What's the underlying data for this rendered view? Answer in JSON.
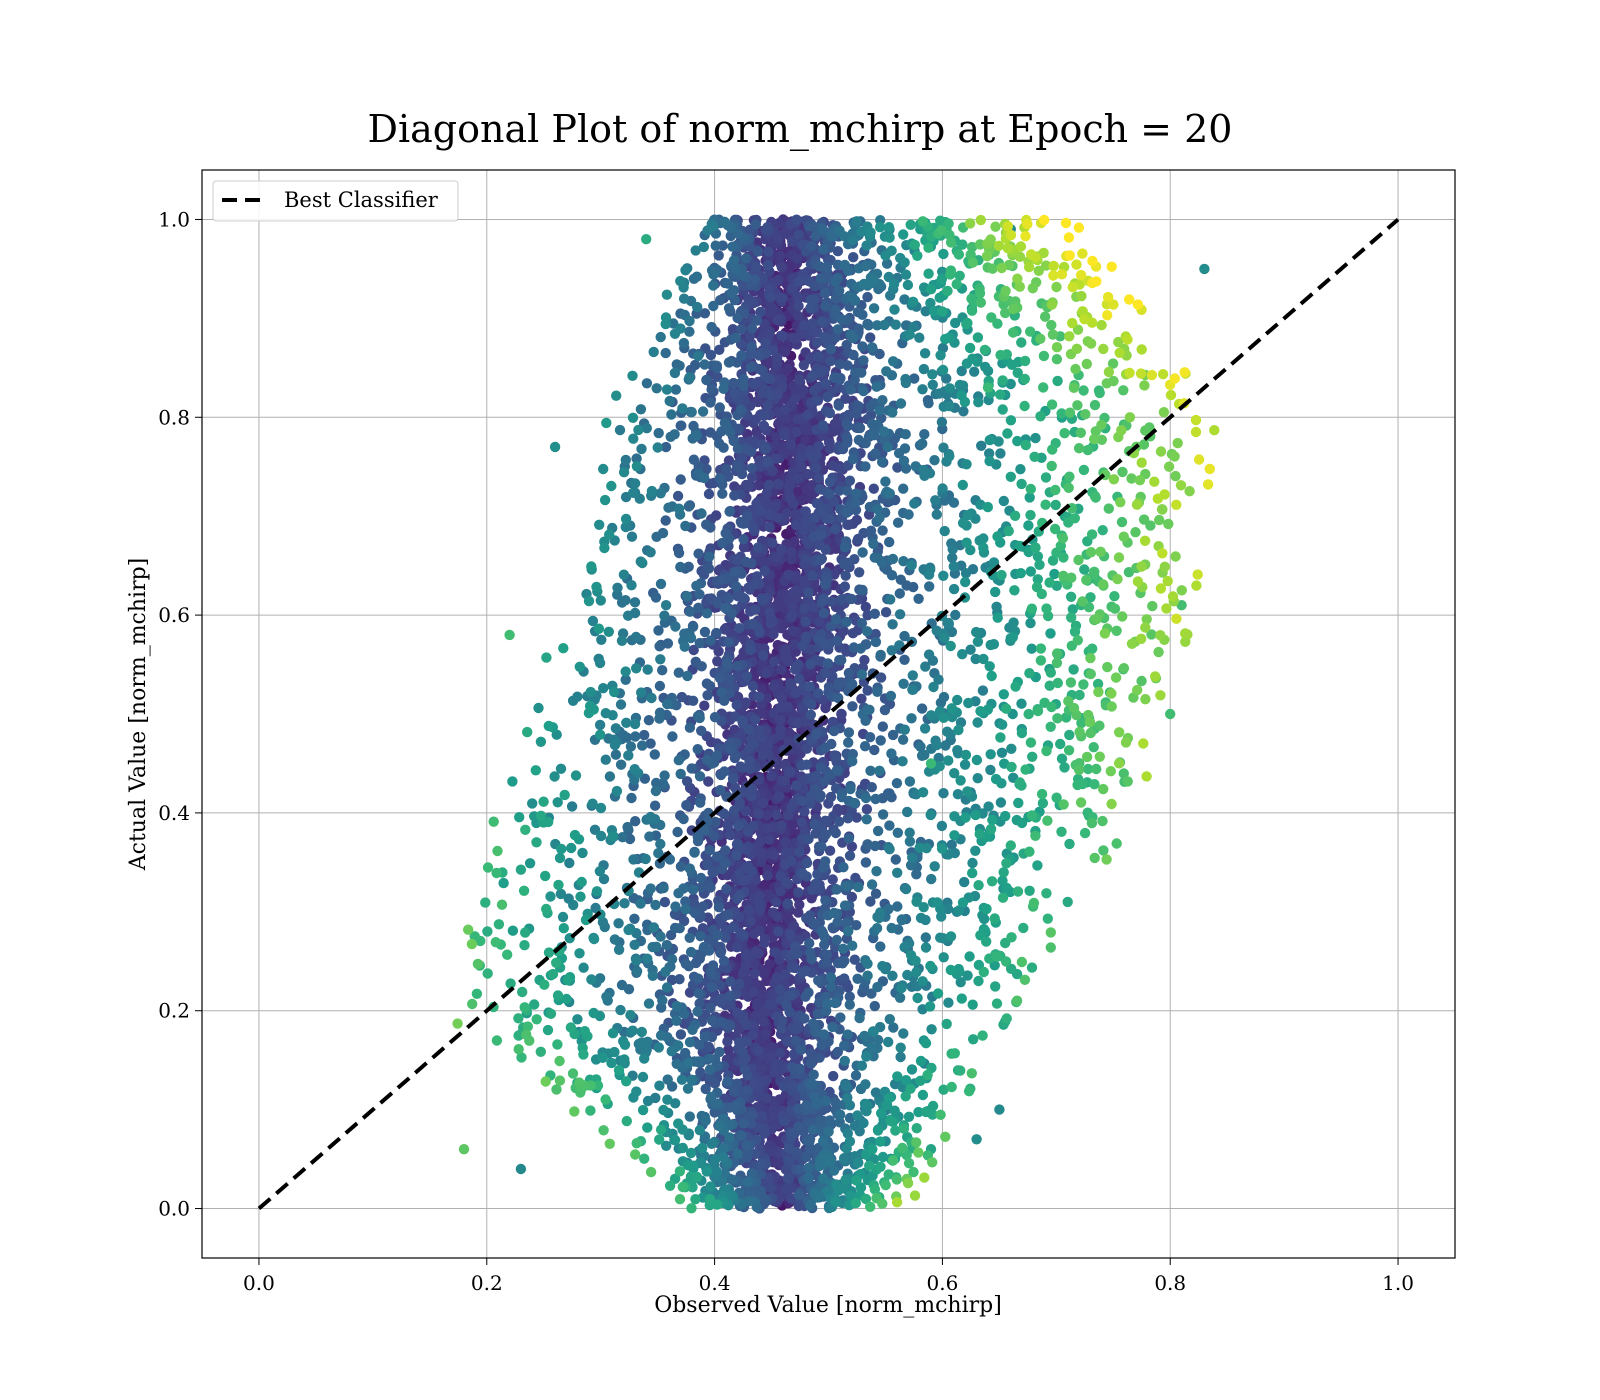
{
  "chart_data": {
    "type": "scatter",
    "title": "Diagonal Plot of norm_mchirp at Epoch = 20",
    "xlabel": "Observed Value [norm_mchirp]",
    "ylabel": "Actual Value [norm_mchirp]",
    "xlim": [
      -0.05,
      1.05
    ],
    "ylim": [
      -0.05,
      1.05
    ],
    "xticks": [
      "0.0",
      "0.2",
      "0.4",
      "0.6",
      "0.8",
      "1.0"
    ],
    "yticks": [
      "0.0",
      "0.2",
      "0.4",
      "0.6",
      "0.8",
      "1.0"
    ],
    "grid": true,
    "legend": {
      "placement": "top-left",
      "entries": [
        "Best Classifier"
      ]
    },
    "colormap": "viridis",
    "reference_line": {
      "name": "Best Classifier",
      "x": [
        0,
        1
      ],
      "y": [
        0,
        1
      ],
      "style": "dashed",
      "color": "#000000"
    },
    "scatter_structure": {
      "estimated_point_count": 20000,
      "bands": [
        {
          "y": 0.0,
          "x_range": [
            0.4,
            0.55
          ],
          "x_center": 0.46
        },
        {
          "y": 0.2,
          "x_range": [
            0.18,
            0.64
          ],
          "x_center": 0.44
        },
        {
          "y": 0.4,
          "x_range": [
            0.22,
            0.75
          ],
          "x_center": 0.45
        },
        {
          "y": 0.6,
          "x_range": [
            0.28,
            0.8
          ],
          "x_center": 0.46
        },
        {
          "y": 0.8,
          "x_range": [
            0.31,
            0.82
          ],
          "x_center": 0.47
        },
        {
          "y": 1.0,
          "x_range": [
            0.42,
            0.7
          ],
          "x_center": 0.46
        }
      ]
    },
    "highlight_points": [
      {
        "x": 0.83,
        "y": 0.95
      },
      {
        "x": 0.81,
        "y": 0.61
      },
      {
        "x": 0.8,
        "y": 0.5
      },
      {
        "x": 0.71,
        "y": 0.31
      },
      {
        "x": 0.65,
        "y": 0.1
      },
      {
        "x": 0.63,
        "y": 0.07
      },
      {
        "x": 0.59,
        "y": 0.06
      },
      {
        "x": 0.22,
        "y": 0.58
      },
      {
        "x": 0.26,
        "y": 0.77
      },
      {
        "x": 0.34,
        "y": 0.98
      },
      {
        "x": 0.18,
        "y": 0.06
      },
      {
        "x": 0.23,
        "y": 0.04
      },
      {
        "x": 0.59,
        "y": 0.45
      },
      {
        "x": 0.66,
        "y": 0.99
      },
      {
        "x": 0.64,
        "y": 0.83
      }
    ]
  }
}
